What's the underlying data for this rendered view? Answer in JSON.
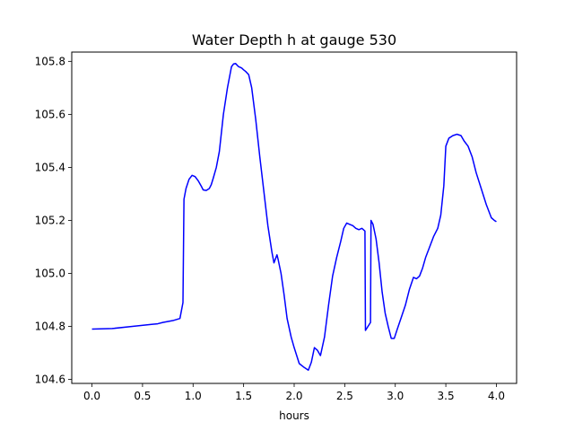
{
  "chart_data": {
    "type": "line",
    "title": "Water Depth h at gauge 530",
    "xlabel": "hours",
    "ylabel": "",
    "xlim": [
      -0.2,
      4.2
    ],
    "ylim": [
      104.585,
      105.835
    ],
    "xticks": [
      0.0,
      0.5,
      1.0,
      1.5,
      2.0,
      2.5,
      3.0,
      3.5,
      4.0
    ],
    "xtick_labels": [
      "0.0",
      "0.5",
      "1.0",
      "1.5",
      "2.0",
      "2.5",
      "3.0",
      "3.5",
      "4.0"
    ],
    "yticks": [
      104.6,
      104.8,
      105.0,
      105.2,
      105.4,
      105.6,
      105.8
    ],
    "ytick_labels": [
      "104.6",
      "104.8",
      "105.0",
      "105.2",
      "105.4",
      "105.6",
      "105.8"
    ],
    "grid": false,
    "legend": "none",
    "series": [
      {
        "color": "#0000ff",
        "x": [
          0.0,
          0.2,
          0.4,
          0.6,
          0.65,
          0.7,
          0.8,
          0.87,
          0.9,
          0.91,
          0.93,
          0.96,
          0.99,
          1.02,
          1.05,
          1.08,
          1.1,
          1.13,
          1.16,
          1.18,
          1.2,
          1.23,
          1.26,
          1.3,
          1.34,
          1.38,
          1.4,
          1.42,
          1.45,
          1.48,
          1.5,
          1.52,
          1.55,
          1.58,
          1.62,
          1.66,
          1.7,
          1.74,
          1.78,
          1.8,
          1.83,
          1.84,
          1.87,
          1.9,
          1.93,
          1.97,
          2.0,
          2.05,
          2.1,
          2.14,
          2.17,
          2.2,
          2.23,
          2.26,
          2.3,
          2.34,
          2.38,
          2.42,
          2.46,
          2.49,
          2.52,
          2.55,
          2.58,
          2.61,
          2.64,
          2.67,
          2.7,
          2.705,
          2.755,
          2.76,
          2.78,
          2.81,
          2.84,
          2.87,
          2.9,
          2.93,
          2.96,
          2.99,
          3.02,
          3.06,
          3.1,
          3.14,
          3.18,
          3.21,
          3.24,
          3.27,
          3.3,
          3.34,
          3.38,
          3.42,
          3.45,
          3.48,
          3.5,
          3.53,
          3.57,
          3.61,
          3.65,
          3.68,
          3.72,
          3.76,
          3.8,
          3.85,
          3.9,
          3.95,
          3.98,
          4.0
        ],
        "y": [
          104.79,
          104.792,
          104.8,
          104.808,
          104.81,
          104.815,
          104.822,
          104.83,
          104.89,
          105.28,
          105.32,
          105.355,
          105.37,
          105.365,
          105.35,
          105.33,
          105.315,
          105.313,
          105.32,
          105.335,
          105.36,
          105.4,
          105.46,
          105.6,
          105.7,
          105.78,
          105.79,
          105.792,
          105.78,
          105.775,
          105.768,
          105.762,
          105.75,
          105.7,
          105.58,
          105.44,
          105.31,
          105.18,
          105.08,
          105.04,
          105.07,
          105.055,
          105.0,
          104.92,
          104.83,
          104.76,
          104.72,
          104.66,
          104.645,
          104.635,
          104.665,
          104.72,
          104.71,
          104.69,
          104.76,
          104.88,
          104.99,
          105.06,
          105.12,
          105.17,
          105.19,
          105.185,
          105.18,
          105.17,
          105.165,
          105.17,
          105.16,
          104.785,
          104.815,
          105.2,
          105.185,
          105.13,
          105.04,
          104.93,
          104.85,
          104.8,
          104.755,
          104.755,
          104.79,
          104.835,
          104.88,
          104.94,
          104.985,
          104.98,
          104.99,
          105.02,
          105.06,
          105.1,
          105.14,
          105.17,
          105.22,
          105.33,
          105.48,
          105.51,
          105.52,
          105.525,
          105.52,
          105.5,
          105.48,
          105.44,
          105.38,
          105.32,
          105.26,
          105.21,
          105.2,
          105.195
        ]
      }
    ]
  }
}
